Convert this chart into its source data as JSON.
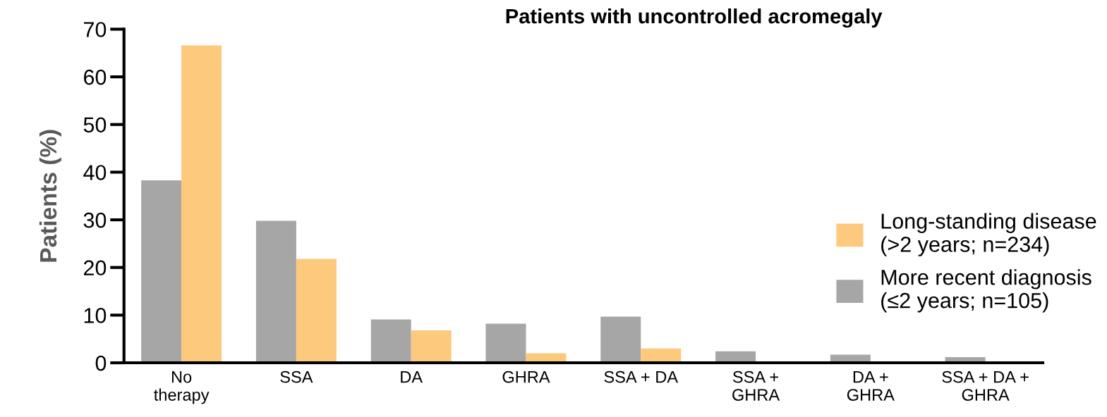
{
  "chart_data": {
    "type": "bar",
    "title": "Patients with uncontrolled acromegaly",
    "ylabel": "Patients (%)",
    "categories": [
      "No\ntherapy",
      "SSA",
      "DA",
      "GHRA",
      "SSA + DA",
      "SSA +\nGHRA",
      "DA +\nGHRA",
      "SSA + DA +\nGHRA"
    ],
    "series": [
      {
        "name": "More recent diagnosis\n(≤2 years; n=105)",
        "color": "#a6a6a6",
        "values": [
          38.3,
          29.8,
          9.1,
          8.2,
          9.7,
          2.4,
          1.7,
          1.2
        ]
      },
      {
        "name": "Long-standing disease\n(>2 years; n=234)",
        "color": "#fdc97c",
        "values": [
          66.6,
          21.8,
          6.8,
          2.0,
          3.0,
          0,
          0,
          0
        ]
      }
    ],
    "ylim": [
      0,
      70
    ],
    "yticks": [
      0,
      10,
      20,
      30,
      40,
      50,
      60,
      70
    ],
    "grid": false,
    "legend": "right"
  }
}
